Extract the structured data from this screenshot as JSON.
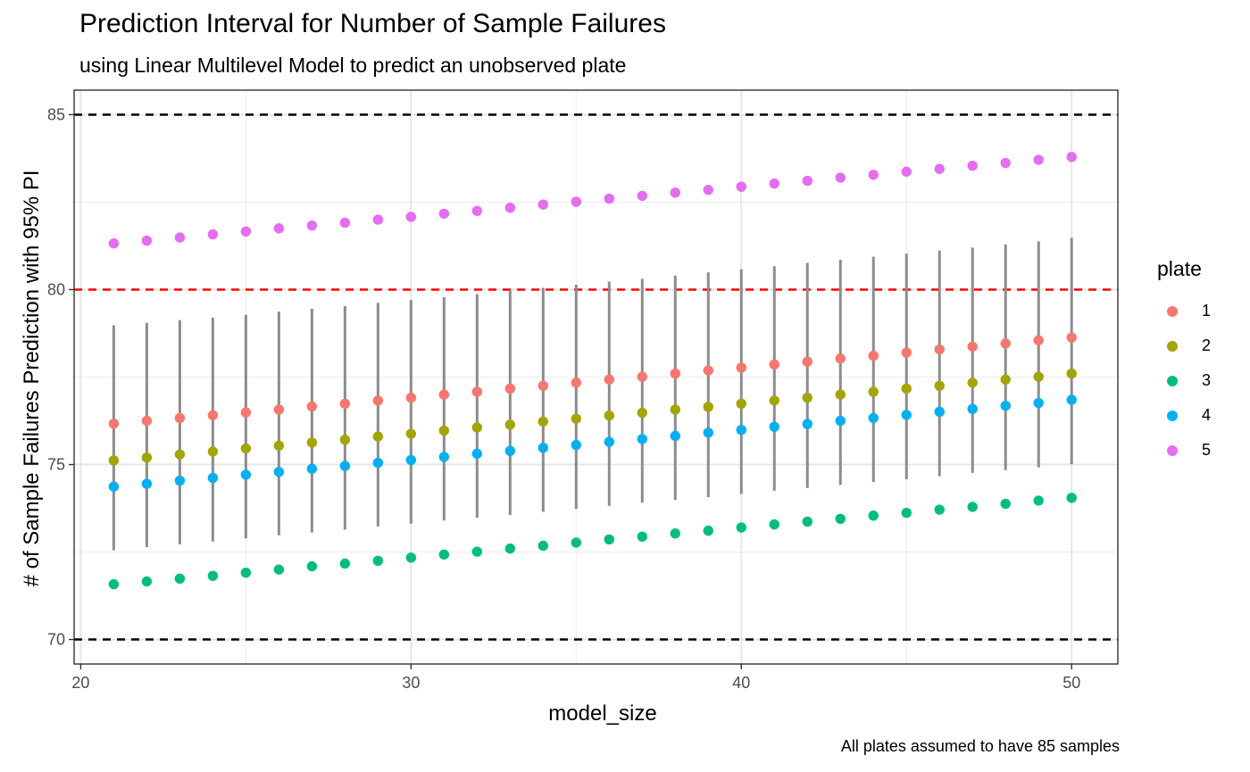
{
  "chart_data": {
    "type": "scatter",
    "title": "Prediction Interval for Number of Sample Failures",
    "subtitle": "using Linear Multilevel Model to predict an unobserved plate",
    "caption": "All plates assumed to have 85 samples",
    "xlabel": "model_size",
    "ylabel": "# of Sample Failures Prediction with 95% PI",
    "xlim": [
      19.8,
      51.4
    ],
    "ylim": [
      69.3,
      85.7
    ],
    "x_ticks": [
      20,
      30,
      40,
      50
    ],
    "y_ticks": [
      70,
      75,
      80,
      85
    ],
    "x_tick_labels": [
      "20",
      "30",
      "40",
      "50"
    ],
    "y_tick_labels": [
      "70",
      "75",
      "80",
      "85"
    ],
    "grid": true,
    "legend": {
      "title": "plate",
      "position": "right"
    },
    "x": [
      21,
      22,
      23,
      24,
      25,
      26,
      27,
      28,
      29,
      30,
      31,
      32,
      33,
      34,
      35,
      36,
      37,
      38,
      39,
      40,
      41,
      42,
      43,
      44,
      45,
      46,
      47,
      48,
      49,
      50
    ],
    "series": [
      {
        "name": "1",
        "color": "#F8766D",
        "values": [
          76.17,
          76.25,
          76.33,
          76.41,
          76.49,
          76.57,
          76.66,
          76.74,
          76.83,
          76.91,
          77.0,
          77.08,
          77.17,
          77.25,
          77.34,
          77.43,
          77.51,
          77.6,
          77.69,
          77.77,
          77.86,
          77.94,
          78.03,
          78.11,
          78.2,
          78.29,
          78.37,
          78.46,
          78.55,
          78.63
        ]
      },
      {
        "name": "2",
        "color": "#A3A500",
        "values": [
          75.12,
          75.2,
          75.29,
          75.37,
          75.46,
          75.54,
          75.63,
          75.71,
          75.8,
          75.88,
          75.97,
          76.06,
          76.14,
          76.23,
          76.31,
          76.4,
          76.48,
          76.57,
          76.65,
          76.74,
          76.83,
          76.91,
          77.0,
          77.08,
          77.17,
          77.25,
          77.34,
          77.43,
          77.51,
          77.6
        ]
      },
      {
        "name": "3",
        "color": "#00BF7D",
        "values": [
          71.58,
          71.66,
          71.74,
          71.82,
          71.91,
          72.0,
          72.09,
          72.17,
          72.25,
          72.34,
          72.43,
          72.51,
          72.6,
          72.68,
          72.77,
          72.86,
          72.94,
          73.03,
          73.11,
          73.2,
          73.29,
          73.37,
          73.45,
          73.54,
          73.62,
          73.71,
          73.79,
          73.88,
          73.97,
          74.05
        ]
      },
      {
        "name": "4",
        "color": "#00B0F6",
        "values": [
          74.37,
          74.45,
          74.54,
          74.62,
          74.71,
          74.79,
          74.88,
          74.96,
          75.05,
          75.13,
          75.22,
          75.31,
          75.39,
          75.48,
          75.56,
          75.65,
          75.73,
          75.82,
          75.91,
          75.99,
          76.08,
          76.16,
          76.25,
          76.33,
          76.42,
          76.51,
          76.59,
          76.68,
          76.76,
          76.85
        ]
      },
      {
        "name": "5",
        "color": "#E76BF3",
        "values": [
          81.32,
          81.4,
          81.49,
          81.58,
          81.66,
          81.75,
          81.83,
          81.91,
          82.0,
          82.08,
          82.17,
          82.25,
          82.34,
          82.43,
          82.51,
          82.6,
          82.68,
          82.77,
          82.85,
          82.94,
          83.03,
          83.11,
          83.2,
          83.28,
          83.37,
          83.45,
          83.54,
          83.62,
          83.71,
          83.79
        ]
      }
    ],
    "intervals": {
      "color": "#8c8c8c",
      "lower": [
        72.55,
        72.64,
        72.72,
        72.8,
        72.89,
        72.98,
        73.06,
        73.14,
        73.23,
        73.31,
        73.4,
        73.48,
        73.56,
        73.65,
        73.73,
        73.82,
        73.91,
        73.99,
        74.07,
        74.16,
        74.25,
        74.33,
        74.42,
        74.5,
        74.58,
        74.67,
        74.76,
        74.84,
        74.92,
        75.01
      ],
      "upper": [
        78.98,
        79.05,
        79.13,
        79.2,
        79.28,
        79.37,
        79.45,
        79.53,
        79.62,
        79.7,
        79.78,
        79.87,
        79.96,
        80.05,
        80.14,
        80.23,
        80.31,
        80.4,
        80.49,
        80.58,
        80.67,
        80.76,
        80.85,
        80.94,
        81.03,
        81.12,
        81.2,
        81.29,
        81.38,
        81.48
      ]
    },
    "reference_lines": [
      {
        "y": 85,
        "color": "#000000",
        "style": "dashed"
      },
      {
        "y": 80,
        "color": "#ff0000",
        "style": "dashed"
      },
      {
        "y": 70,
        "color": "#000000",
        "style": "dashed"
      }
    ]
  }
}
